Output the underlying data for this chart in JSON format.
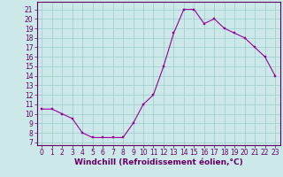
{
  "x": [
    0,
    1,
    2,
    3,
    4,
    5,
    6,
    7,
    8,
    9,
    10,
    11,
    12,
    13,
    14,
    15,
    16,
    17,
    18,
    19,
    20,
    21,
    22,
    23
  ],
  "y": [
    10.5,
    10.5,
    10.0,
    9.5,
    8.0,
    7.5,
    7.5,
    7.5,
    7.5,
    9.0,
    11.0,
    12.0,
    15.0,
    18.5,
    21.0,
    21.0,
    19.5,
    20.0,
    19.0,
    18.5,
    18.0,
    17.0,
    16.0,
    14.0
  ],
  "line_color": "#990099",
  "marker_color": "#990099",
  "bg_color": "#cce8e8",
  "grid_color": "#99cccc",
  "xlabel": "Windchill (Refroidissement éolien,°C)",
  "yticks": [
    7,
    8,
    9,
    10,
    11,
    12,
    13,
    14,
    15,
    16,
    17,
    18,
    19,
    20,
    21
  ],
  "xticks": [
    0,
    1,
    2,
    3,
    4,
    5,
    6,
    7,
    8,
    9,
    10,
    11,
    12,
    13,
    14,
    15,
    16,
    17,
    18,
    19,
    20,
    21,
    22,
    23
  ],
  "xlim": [
    -0.5,
    23.5
  ],
  "ylim": [
    6.7,
    21.8
  ],
  "tick_fontsize": 5.5,
  "xlabel_fontsize": 6.5,
  "text_color": "#660066",
  "spine_color": "#660066",
  "linewidth": 0.8,
  "markersize": 2.0
}
